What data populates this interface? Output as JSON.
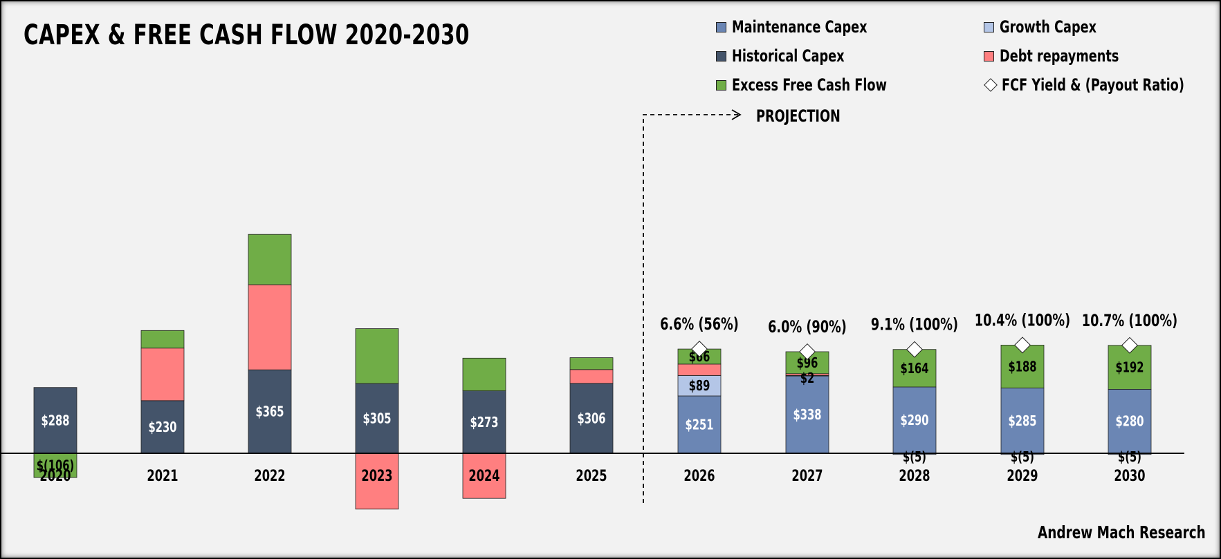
{
  "chart_data": {
    "type": "bar",
    "stacked": true,
    "title": "CAPEX & FREE CASH FLOW 2020-2030",
    "categories": [
      "2020",
      "2021",
      "2022",
      "2023",
      "2024",
      "2025",
      "2026",
      "2027",
      "2028",
      "2029",
      "2030"
    ],
    "series": [
      {
        "name": "Historical Capex",
        "color": "#44546a",
        "values": [
          288,
          230,
          365,
          305,
          273,
          306,
          null,
          null,
          null,
          null,
          null
        ],
        "labels": [
          "$288",
          "$230",
          "$365",
          "$305",
          "$273",
          "$306",
          "",
          "",
          "",
          "",
          ""
        ]
      },
      {
        "name": "Maintenance Capex",
        "color": "#6b86b4",
        "values": [
          null,
          null,
          null,
          null,
          null,
          null,
          251,
          338,
          290,
          285,
          280
        ],
        "labels": [
          "",
          "",
          "",
          "",
          "",
          "",
          "$251",
          "$338",
          "$290",
          "$285",
          "$280"
        ]
      },
      {
        "name": "Growth Capex",
        "color": "#b4c6e7",
        "values": [
          null,
          null,
          null,
          null,
          null,
          null,
          89,
          2,
          -5,
          -5,
          -5
        ],
        "labels": [
          "",
          "",
          "",
          "",
          "",
          "",
          "$89",
          "$2",
          "$(5)",
          "$(5)",
          "$(5)"
        ]
      },
      {
        "name": "Debt repayments",
        "color": "#ff7f80",
        "values": [
          0,
          230,
          372,
          -244,
          -197,
          60,
          50,
          8,
          0,
          0,
          0
        ],
        "labels": [
          "",
          "",
          "",
          "",
          "",
          "",
          "",
          "",
          "",
          "",
          ""
        ]
      },
      {
        "name": "Excess Free Cash Flow",
        "color": "#70ad47",
        "values": [
          -106,
          77,
          220,
          240,
          143,
          52,
          66,
          96,
          164,
          188,
          192
        ],
        "labels": [
          "$(106)",
          "",
          "",
          "",
          "",
          "",
          "$66",
          "$96",
          "$164",
          "$188",
          "$192"
        ]
      }
    ],
    "fcf_yield": {
      "name": "FCF Yield & (Payout Ratio)",
      "labels": [
        "",
        "",
        "",
        "",
        "",
        "",
        "6.6% (56%)",
        "6.0% (90%)",
        "9.1% (100%)",
        "10.4% (100%)",
        "10.7% (100%)"
      ]
    },
    "legend": [
      "Maintenance Capex",
      "Growth Capex",
      "Historical Capex",
      "Debt repayments",
      "Excess Free Cash Flow",
      "FCF Yield & (Payout Ratio)"
    ],
    "legend_position": "top-right",
    "annotation": "PROJECTION",
    "source": "Andrew Mach Research",
    "grid": false
  },
  "colors": {
    "historical": "#44546a",
    "maintenance": "#6b86b4",
    "growth": "#b4c6e7",
    "debt": "#ff7f80",
    "fcf": "#70ad47",
    "background": "#f2f2f2"
  }
}
